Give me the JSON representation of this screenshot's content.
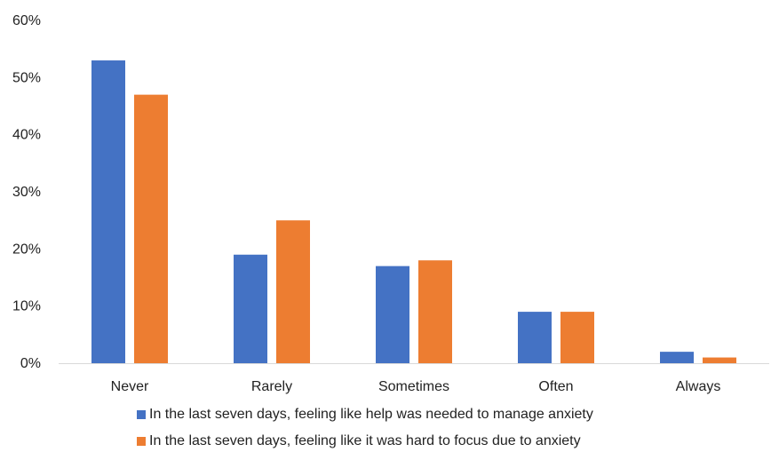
{
  "chart_data": {
    "type": "bar",
    "categories": [
      "Never",
      "Rarely",
      "Sometimes",
      "Often",
      "Always"
    ],
    "series": [
      {
        "name": "In the last seven days, feeling like help was needed to manage anxiety",
        "values": [
          53,
          19,
          17,
          9,
          2
        ],
        "color": "#4472C4"
      },
      {
        "name": "In the last seven days, feeling like it was hard to focus due to anxiety",
        "values": [
          47,
          25,
          18,
          9,
          1
        ],
        "color": "#ED7D31"
      }
    ],
    "ylim": [
      0,
      60
    ],
    "yticks": [
      "0%",
      "10%",
      "20%",
      "30%",
      "40%",
      "50%",
      "60%"
    ],
    "grid": false,
    "legend_position": "bottom"
  }
}
